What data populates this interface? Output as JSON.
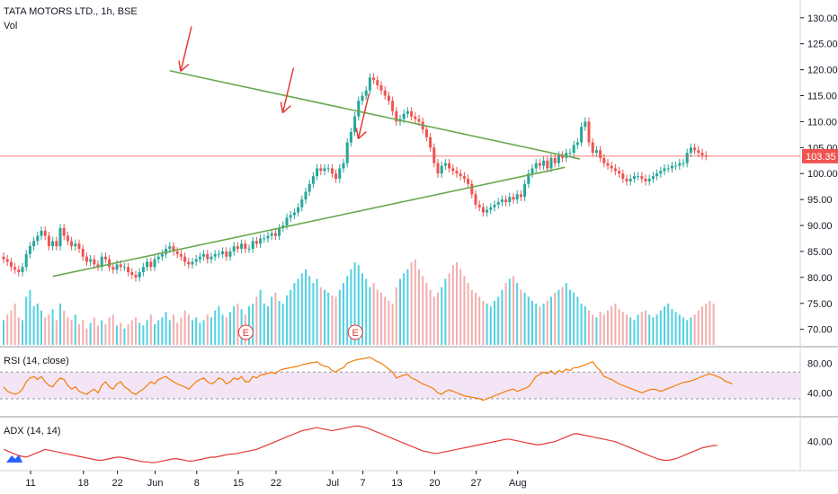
{
  "header": {
    "symbol_line": "TATA MOTORS LTD., 1h, BSE",
    "vol_label": "Vol"
  },
  "panes": {
    "rsi_title": "RSI (14, close)",
    "adx_title": "ADX (14, 14)"
  },
  "colors": {
    "up": "#26a69a",
    "down": "#ef5350",
    "trendline": "#6aa84f",
    "arrow": "#e53935",
    "price_line": "#ef5350",
    "rsi_line": "#f57c00",
    "rsi_band": "#f3e5f5",
    "adx_line": "#e53935",
    "volume": "#26c6da"
  },
  "chart_data": {
    "type": "candlestick",
    "title": "TATA MOTORS LTD., 1h, BSE",
    "price_axis": {
      "ticks": [
        "130.00",
        "125.00",
        "120.00",
        "115.00",
        "110.00",
        "105.00",
        "100.00",
        "95.00",
        "90.00",
        "85.00",
        "80.00",
        "75.00",
        "70.00"
      ],
      "values": [
        130,
        125,
        120,
        115,
        110,
        105,
        100,
        95,
        90,
        85,
        80,
        75,
        70
      ],
      "range": [
        67,
        131
      ]
    },
    "last_price": {
      "value": 103.35,
      "label": "103.35"
    },
    "time_axis": {
      "labels": [
        "11",
        "18",
        "22",
        "Jun",
        "8",
        "15",
        "22",
        "Jul",
        "7",
        "13",
        "20",
        "27",
        "Aug"
      ],
      "slots": [
        0,
        14,
        23,
        33,
        44,
        55,
        65,
        80,
        88,
        97,
        107,
        118,
        129
      ]
    },
    "ohlc_closes": [
      83.5,
      83,
      82,
      81.5,
      81,
      82,
      84.5,
      86,
      87,
      88,
      89,
      88,
      86,
      87,
      86,
      89.5,
      88,
      87,
      86,
      86.5,
      85.5,
      84,
      83,
      83.5,
      82.5,
      82,
      84,
      83.5,
      82,
      81.5,
      82.5,
      82,
      82,
      81,
      80.5,
      80,
      81,
      82,
      83,
      82,
      83.5,
      84,
      84.5,
      85.5,
      86,
      85,
      84.5,
      84,
      83,
      82.5,
      83,
      83.5,
      84,
      84.5,
      83.5,
      84,
      84.5,
      84.5,
      85,
      84,
      85,
      86,
      85.5,
      86.5,
      85.5,
      85.5,
      87,
      86.5,
      87.5,
      87.5,
      88,
      88.5,
      88,
      89.5,
      90,
      91.5,
      92,
      92.5,
      93.5,
      95,
      96.5,
      98,
      99.5,
      101,
      100.5,
      101,
      101,
      100,
      99,
      101,
      102,
      106,
      108,
      111,
      114,
      115,
      116,
      118.5,
      118,
      117,
      116,
      115,
      114,
      112,
      110,
      110.5,
      111.5,
      112,
      111,
      110.5,
      110,
      108.5,
      107,
      105,
      102,
      100,
      101.5,
      102,
      101,
      100.5,
      100,
      99.5,
      99,
      98,
      96,
      94,
      93.5,
      92.5,
      93,
      93.5,
      94,
      94.5,
      95,
      94.5,
      95.5,
      95,
      96,
      95.5,
      98,
      100,
      101,
      102,
      101.5,
      102.5,
      101,
      103,
      102,
      103.5,
      103,
      104,
      104,
      105.5,
      106,
      109,
      110,
      106,
      104,
      104.5,
      103,
      102,
      101.5,
      101,
      100.5,
      100,
      99,
      98.5,
      99,
      99.5,
      99.5,
      99,
      98.5,
      99,
      99.5,
      100,
      100.5,
      101,
      101,
      101.5,
      101.5,
      102,
      102,
      104,
      105,
      104.5,
      104,
      103.5,
      103.35
    ],
    "volume": [
      18,
      22,
      25,
      30,
      20,
      18,
      35,
      40,
      28,
      30,
      25,
      20,
      22,
      26,
      18,
      30,
      25,
      20,
      18,
      22,
      15,
      18,
      12,
      16,
      20,
      14,
      18,
      15,
      20,
      22,
      14,
      16,
      12,
      15,
      18,
      20,
      16,
      14,
      18,
      22,
      15,
      18,
      20,
      24,
      18,
      22,
      16,
      20,
      25,
      22,
      18,
      20,
      16,
      18,
      22,
      20,
      25,
      28,
      22,
      20,
      24,
      28,
      30,
      26,
      22,
      28,
      30,
      35,
      40,
      30,
      28,
      35,
      38,
      32,
      30,
      36,
      40,
      45,
      48,
      52,
      55,
      50,
      45,
      48,
      42,
      40,
      38,
      36,
      35,
      40,
      45,
      50,
      55,
      60,
      58,
      52,
      48,
      42,
      45,
      40,
      38,
      35,
      32,
      30,
      42,
      48,
      52,
      55,
      60,
      62,
      55,
      50,
      45,
      40,
      35,
      38,
      42,
      48,
      52,
      58,
      60,
      55,
      50,
      45,
      40,
      38,
      35,
      32,
      30,
      28,
      32,
      35,
      40,
      45,
      48,
      50,
      45,
      40,
      38,
      35,
      32,
      30,
      28,
      30,
      32,
      35,
      38,
      40,
      42,
      45,
      40,
      38,
      35,
      30,
      28,
      25,
      22,
      20,
      24,
      22,
      25,
      28,
      30,
      26,
      24,
      22,
      20,
      18,
      22,
      24,
      25,
      22,
      20,
      22,
      25,
      28,
      30,
      26,
      24,
      22,
      20,
      18,
      20,
      22,
      25,
      28,
      30,
      32,
      30
    ],
    "rsi": {
      "levels": [
        80,
        40
      ],
      "ticks": [
        "80.00",
        "40.00"
      ],
      "values": [
        48,
        42,
        40,
        38,
        40,
        45,
        55,
        60,
        62,
        58,
        62,
        55,
        50,
        48,
        55,
        60,
        58,
        50,
        45,
        48,
        42,
        40,
        38,
        42,
        45,
        40,
        50,
        55,
        48,
        45,
        52,
        55,
        48,
        45,
        40,
        38,
        42,
        45,
        50,
        55,
        52,
        58,
        60,
        62,
        58,
        55,
        52,
        50,
        48,
        45,
        50,
        55,
        58,
        60,
        55,
        52,
        55,
        60,
        58,
        52,
        55,
        60,
        58,
        62,
        55,
        55,
        62,
        60,
        64,
        65,
        66,
        68,
        66,
        70,
        72,
        73,
        74,
        75,
        76,
        78,
        79,
        80,
        81,
        82,
        78,
        76,
        75,
        70,
        68,
        72,
        74,
        80,
        82,
        84,
        85,
        86,
        87,
        88,
        85,
        82,
        80,
        76,
        72,
        68,
        60,
        62,
        64,
        65,
        60,
        58,
        55,
        52,
        50,
        48,
        45,
        40,
        38,
        42,
        44,
        42,
        40,
        38,
        36,
        35,
        34,
        33,
        32,
        30,
        32,
        34,
        36,
        38,
        40,
        42,
        44,
        45,
        42,
        44,
        46,
        48,
        55,
        62,
        65,
        68,
        66,
        70,
        65,
        70,
        68,
        72,
        70,
        74,
        74,
        76,
        78,
        80,
        82,
        75,
        70,
        62,
        60,
        58,
        55,
        52,
        50,
        48,
        46,
        44,
        42,
        40,
        42,
        44,
        45,
        44,
        42,
        44,
        46,
        48,
        50,
        52,
        54,
        55,
        56,
        58,
        60,
        62,
        64,
        66,
        64,
        62,
        60,
        56,
        54,
        52
      ]
    },
    "adx": {
      "ticks": [
        "40.00"
      ],
      "values": [
        30,
        28,
        26,
        24,
        22,
        21,
        20,
        22,
        24,
        26,
        28,
        30,
        29,
        28,
        27,
        26,
        25,
        24,
        23,
        22,
        21,
        20,
        19,
        18,
        17,
        16,
        16,
        17,
        18,
        19,
        20,
        20,
        19,
        18,
        17,
        16,
        15,
        14,
        14,
        13,
        13,
        14,
        15,
        16,
        17,
        18,
        18,
        17,
        16,
        15,
        15,
        16,
        17,
        18,
        19,
        20,
        20,
        21,
        22,
        23,
        24,
        24,
        25,
        26,
        27,
        28,
        29,
        30,
        32,
        34,
        36,
        38,
        40,
        42,
        44,
        46,
        48,
        50,
        52,
        54,
        55,
        56,
        57,
        58,
        57,
        56,
        55,
        54,
        55,
        56,
        57,
        58,
        59,
        60,
        60,
        59,
        58,
        56,
        54,
        52,
        50,
        48,
        46,
        44,
        42,
        40,
        38,
        36,
        34,
        32,
        30,
        28,
        27,
        26,
        25,
        25,
        26,
        27,
        28,
        29,
        30,
        31,
        32,
        33,
        34,
        35,
        36,
        37,
        38,
        39,
        40,
        41,
        42,
        43,
        43,
        42,
        41,
        40,
        39,
        38,
        37,
        36,
        36,
        37,
        38,
        39,
        40,
        42,
        44,
        46,
        48,
        50,
        50,
        49,
        48,
        47,
        46,
        45,
        44,
        43,
        42,
        41,
        40,
        38,
        36,
        34,
        32,
        30,
        28,
        26,
        24,
        22,
        20,
        18,
        17,
        16,
        16,
        17,
        18,
        20,
        22,
        24,
        26,
        28,
        30,
        32,
        33,
        34,
        35,
        35
      ]
    },
    "annotations": [
      {
        "type": "trendline",
        "name": "upper",
        "x0": 44,
        "y0": 119.8,
        "x1": 105,
        "y1": 102.8
      },
      {
        "type": "trendline",
        "name": "lower",
        "x0": 13,
        "y0": 80.2,
        "x1": 101,
        "y1": 101.2
      },
      {
        "type": "arrow",
        "x": 45,
        "y": 119
      },
      {
        "type": "arrow",
        "x": 72,
        "y": 111
      },
      {
        "type": "arrow",
        "x": 92,
        "y": 106
      },
      {
        "type": "earnings",
        "label": "E",
        "x": 57
      },
      {
        "type": "earnings",
        "label": "E",
        "x": 86
      }
    ]
  }
}
